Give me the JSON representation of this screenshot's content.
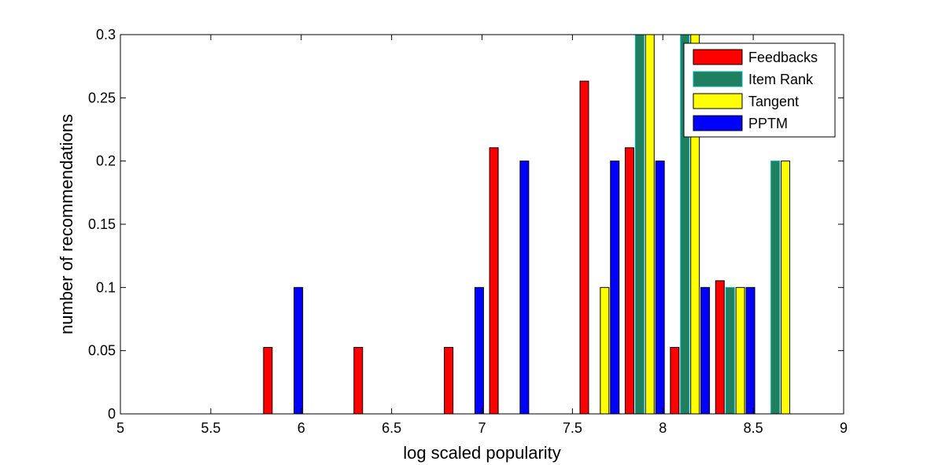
{
  "chart_data": {
    "type": "bar",
    "xlabel": "log scaled popularity",
    "ylabel": "number of recommendations",
    "xlim": [
      5,
      9
    ],
    "ylim": [
      0,
      0.3
    ],
    "xticks": [
      "5",
      "5.5",
      "6",
      "6.5",
      "7",
      "7.5",
      "8",
      "8.5",
      "9"
    ],
    "yticks": [
      "0",
      "0.05",
      "0.1",
      "0.15",
      "0.2",
      "0.25",
      "0.3"
    ],
    "bin_centers": [
      5.15,
      5.4,
      5.65,
      5.9,
      6.15,
      6.4,
      6.65,
      6.9,
      7.15,
      7.4,
      7.65,
      7.9,
      8.15,
      8.4,
      8.65,
      8.9
    ],
    "legend_position": "top-right",
    "series": [
      {
        "name": "Feedbacks",
        "color": "#ff0000",
        "values": [
          0,
          0,
          0,
          0.0526,
          0,
          0.0526,
          0,
          0.0526,
          0.2105,
          0,
          0.2632,
          0.2105,
          0.0526,
          0.1053,
          0,
          0
        ]
      },
      {
        "name": "Item Rank",
        "color": "#1f7f5f",
        "values": [
          0,
          0,
          0,
          0,
          0,
          0,
          0,
          0,
          0,
          0,
          0,
          0.3,
          0.3,
          0.1,
          0.2,
          0
        ]
      },
      {
        "name": "Tangent",
        "color": "#ffff00",
        "values": [
          0,
          0,
          0,
          0,
          0,
          0,
          0,
          0,
          0,
          0,
          0.1,
          0.3,
          0.3,
          0.1,
          0.2,
          0
        ]
      },
      {
        "name": "PPTM",
        "color": "#0000ff",
        "values": [
          0,
          0,
          0,
          0.1,
          0,
          0,
          0,
          0.1,
          0.2,
          0,
          0.2,
          0.2,
          0.1,
          0.1,
          0,
          0
        ]
      }
    ]
  }
}
